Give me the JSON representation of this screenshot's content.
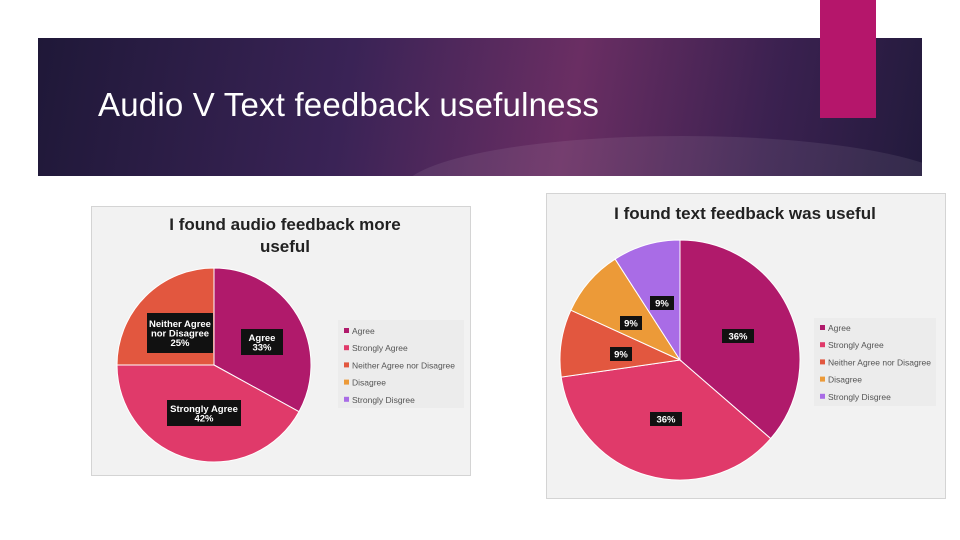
{
  "slide": {
    "title": "Audio V Text feedback usefulness",
    "colors": {
      "accent": "#b5166b",
      "banner_dark": "#231a3c",
      "banner_mid": "#6a2e63"
    }
  },
  "chart_data": [
    {
      "type": "pie",
      "title": "I found audio feedback more useful",
      "categories": [
        "Agree",
        "Strongly Agree",
        "Neither Agree nor Disagree",
        "Disagree",
        "Strongly Disgree"
      ],
      "values": [
        33,
        42,
        25,
        0,
        0
      ],
      "data_labels": [
        "Agree\n33%",
        "Strongly Agree\n42%",
        "Neither Agree\nnor Disagree\n25%",
        "",
        ""
      ],
      "colors": [
        "#b01a6b",
        "#e03a6a",
        "#e2573f",
        "#ec9a38",
        "#a96ce6"
      ],
      "legend_position": "right"
    },
    {
      "type": "pie",
      "title": "I found text feedback was useful",
      "categories": [
        "Agree",
        "Strongly Agree",
        "Neither Agree nor Disagree",
        "Disagree",
        "Strongly Disgree"
      ],
      "values": [
        36,
        36,
        9,
        9,
        9
      ],
      "data_labels": [
        "36%",
        "36%",
        "9%",
        "9%",
        "9%"
      ],
      "colors": [
        "#b01a6b",
        "#e03a6a",
        "#e2573f",
        "#ec9a38",
        "#a96ce6"
      ],
      "legend_position": "right"
    }
  ]
}
